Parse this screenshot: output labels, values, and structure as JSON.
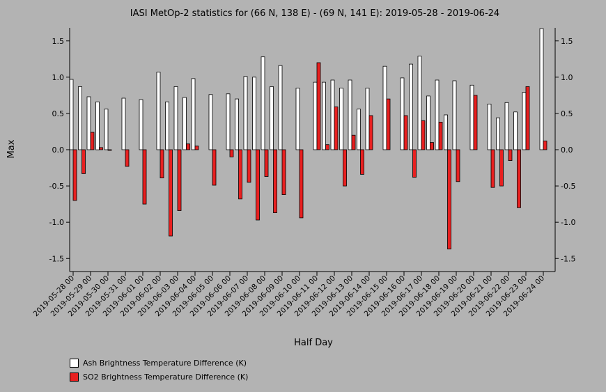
{
  "chart_data": {
    "type": "bar",
    "title": "IASI MetOp-2 statistics for (66 N, 138 E) - (69 N, 141 E): 2019-05-28 - 2019-06-24",
    "xlabel": "Half Day",
    "ylabel": "Max",
    "ylim": [
      -1.68,
      1.68
    ],
    "yticks": [
      1.5,
      1.0,
      0.5,
      0.0,
      -0.5,
      -1.0,
      -1.5
    ],
    "ytick_labels": [
      "1.5",
      "1.0",
      "0.5",
      "0.0",
      "-0.5",
      "-1.0",
      "-1.5"
    ],
    "categories": [
      "2019-05-28 00",
      "2019-05-28 12",
      "2019-05-29 00",
      "2019-05-29 12",
      "2019-05-30 00",
      "2019-05-30 12",
      "2019-05-31 00",
      "2019-05-31 12",
      "2019-06-01 00",
      "2019-06-01 12",
      "2019-06-02 00",
      "2019-06-02 12",
      "2019-06-03 00",
      "2019-06-03 12",
      "2019-06-04 00",
      "2019-06-04 12",
      "2019-06-05 00",
      "2019-06-05 12",
      "2019-06-06 00",
      "2019-06-06 12",
      "2019-06-07 00",
      "2019-06-07 12",
      "2019-06-08 00",
      "2019-06-08 12",
      "2019-06-09 00",
      "2019-06-09 12",
      "2019-06-10 00",
      "2019-06-10 12",
      "2019-06-11 00",
      "2019-06-11 12",
      "2019-06-12 00",
      "2019-06-12 12",
      "2019-06-13 00",
      "2019-06-13 12",
      "2019-06-14 00",
      "2019-06-14 12",
      "2019-06-15 00",
      "2019-06-15 12",
      "2019-06-16 00",
      "2019-06-16 12",
      "2019-06-17 00",
      "2019-06-17 12",
      "2019-06-18 00",
      "2019-06-18 12",
      "2019-06-19 00",
      "2019-06-19 12",
      "2019-06-20 00",
      "2019-06-20 12",
      "2019-06-21 00",
      "2019-06-21 12",
      "2019-06-22 00",
      "2019-06-22 12",
      "2019-06-23 00",
      "2019-06-23 12",
      "2019-06-24 00"
    ],
    "xtick_labels": [
      "2019-05-28 00",
      "2019-05-29 00",
      "2019-05-30 00",
      "2019-05-31 00",
      "2019-06-01 00",
      "2019-06-02 00",
      "2019-06-03 00",
      "2019-06-04 00",
      "2019-06-05 00",
      "2019-06-06 00",
      "2019-06-07 00",
      "2019-06-08 00",
      "2019-06-09 00",
      "2019-06-10 00",
      "2019-06-11 00",
      "2019-06-12 00",
      "2019-06-13 00",
      "2019-06-14 00",
      "2019-06-15 00",
      "2019-06-16 00",
      "2019-06-17 00",
      "2019-06-18 00",
      "2019-06-19 00",
      "2019-06-20 00",
      "2019-06-21 00",
      "2019-06-22 00",
      "2019-06-23 00",
      "2019-06-24 00"
    ],
    "series": [
      {
        "name": "Ash Brightness Temperature Difference (K)",
        "color": "#ffffff",
        "values": [
          0.97,
          0.87,
          0.73,
          0.66,
          0.56,
          null,
          0.71,
          null,
          0.69,
          null,
          1.07,
          0.66,
          0.87,
          0.72,
          0.98,
          null,
          0.76,
          null,
          0.77,
          0.7,
          1.01,
          1.0,
          1.28,
          0.87,
          1.16,
          null,
          0.85,
          null,
          0.93,
          0.93,
          0.96,
          0.85,
          0.96,
          0.56,
          0.85,
          null,
          1.15,
          null,
          0.99,
          1.18,
          1.29,
          0.74,
          0.96,
          0.48,
          0.95,
          null,
          0.89,
          null,
          0.63,
          0.44,
          0.65,
          0.52,
          0.79,
          null,
          1.67
        ]
      },
      {
        "name": "SO2 Brightness Temperature Difference (K)",
        "color": "#e82020",
        "values": [
          -0.7,
          -0.33,
          0.24,
          0.03,
          -0.01,
          null,
          -0.23,
          null,
          -0.75,
          null,
          -0.39,
          -1.19,
          -0.84,
          0.08,
          0.05,
          null,
          -0.49,
          null,
          -0.1,
          -0.68,
          -0.45,
          -0.97,
          -0.37,
          -0.87,
          -0.62,
          null,
          -0.94,
          null,
          1.2,
          0.07,
          0.59,
          -0.5,
          0.2,
          -0.34,
          0.47,
          null,
          0.7,
          null,
          0.47,
          -0.38,
          0.4,
          0.1,
          0.38,
          -1.37,
          -0.44,
          null,
          0.75,
          null,
          -0.52,
          -0.5,
          -0.15,
          -0.8,
          0.87,
          null,
          0.12
        ]
      }
    ],
    "legend_position": "bottom-left",
    "grid": false
  }
}
